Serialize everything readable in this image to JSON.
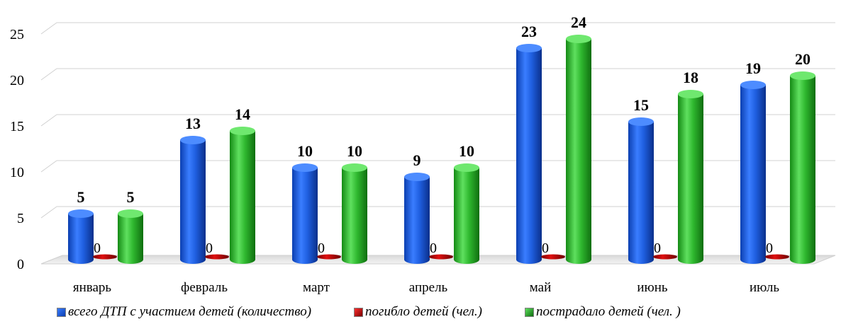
{
  "chart_data": {
    "type": "bar",
    "categories": [
      "январь",
      "февраль",
      "март",
      "апрель",
      "май",
      "июнь",
      "июль"
    ],
    "series": [
      {
        "name": "всего ДТП с участием детей (количество)",
        "values": [
          5,
          13,
          10,
          9,
          23,
          15,
          19
        ],
        "color": "#1f5fe0"
      },
      {
        "name": "погибло детей (чел.)",
        "values": [
          0,
          0,
          0,
          0,
          0,
          0,
          0
        ],
        "color": "#c00000"
      },
      {
        "name": "пострадало детей (чел. )",
        "values": [
          5,
          14,
          10,
          10,
          24,
          18,
          20
        ],
        "color": "#2fb82f"
      }
    ],
    "yticks": [
      "0",
      "5",
      "10",
      "15",
      "20",
      "25"
    ],
    "ylim": [
      0,
      27
    ],
    "grid": true,
    "legend_position": "bottom"
  }
}
